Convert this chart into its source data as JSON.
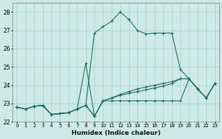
{
  "xlabel": "Humidex (Indice chaleur)",
  "xlim": [
    -0.5,
    23.5
  ],
  "ylim": [
    22.0,
    28.5
  ],
  "yticks": [
    22,
    23,
    24,
    25,
    26,
    27,
    28
  ],
  "bg_color": "#ceeae6",
  "grid_color": "#aad4cf",
  "line_color": "#1a6b5e",
  "series": {
    "main": [
      22.8,
      22.7,
      22.85,
      22.9,
      22.4,
      22.45,
      22.5,
      22.7,
      22.9,
      26.85,
      27.2,
      27.5,
      28.0,
      27.6,
      27.0,
      26.8,
      26.85,
      26.85,
      26.85,
      24.85,
      24.35,
      23.8,
      23.3,
      24.1
    ],
    "spike": [
      22.8,
      22.7,
      22.85,
      22.9,
      22.4,
      22.45,
      22.5,
      22.7,
      25.2,
      22.3,
      23.15,
      23.15,
      23.15,
      23.15,
      23.15,
      23.15,
      23.15,
      23.15,
      23.15,
      23.15,
      24.35,
      23.8,
      23.3,
      24.1
    ],
    "mid1": [
      22.8,
      22.7,
      22.85,
      22.9,
      22.4,
      22.45,
      22.5,
      22.7,
      22.9,
      22.3,
      23.15,
      23.3,
      23.45,
      23.55,
      23.65,
      23.75,
      23.85,
      23.95,
      24.1,
      24.35,
      24.35,
      23.8,
      23.3,
      24.1
    ],
    "mid2": [
      22.8,
      22.7,
      22.85,
      22.9,
      22.4,
      22.45,
      22.5,
      22.7,
      22.9,
      22.3,
      23.15,
      23.3,
      23.5,
      23.65,
      23.8,
      23.9,
      24.0,
      24.1,
      24.2,
      24.35,
      24.35,
      23.8,
      23.3,
      24.1
    ]
  }
}
